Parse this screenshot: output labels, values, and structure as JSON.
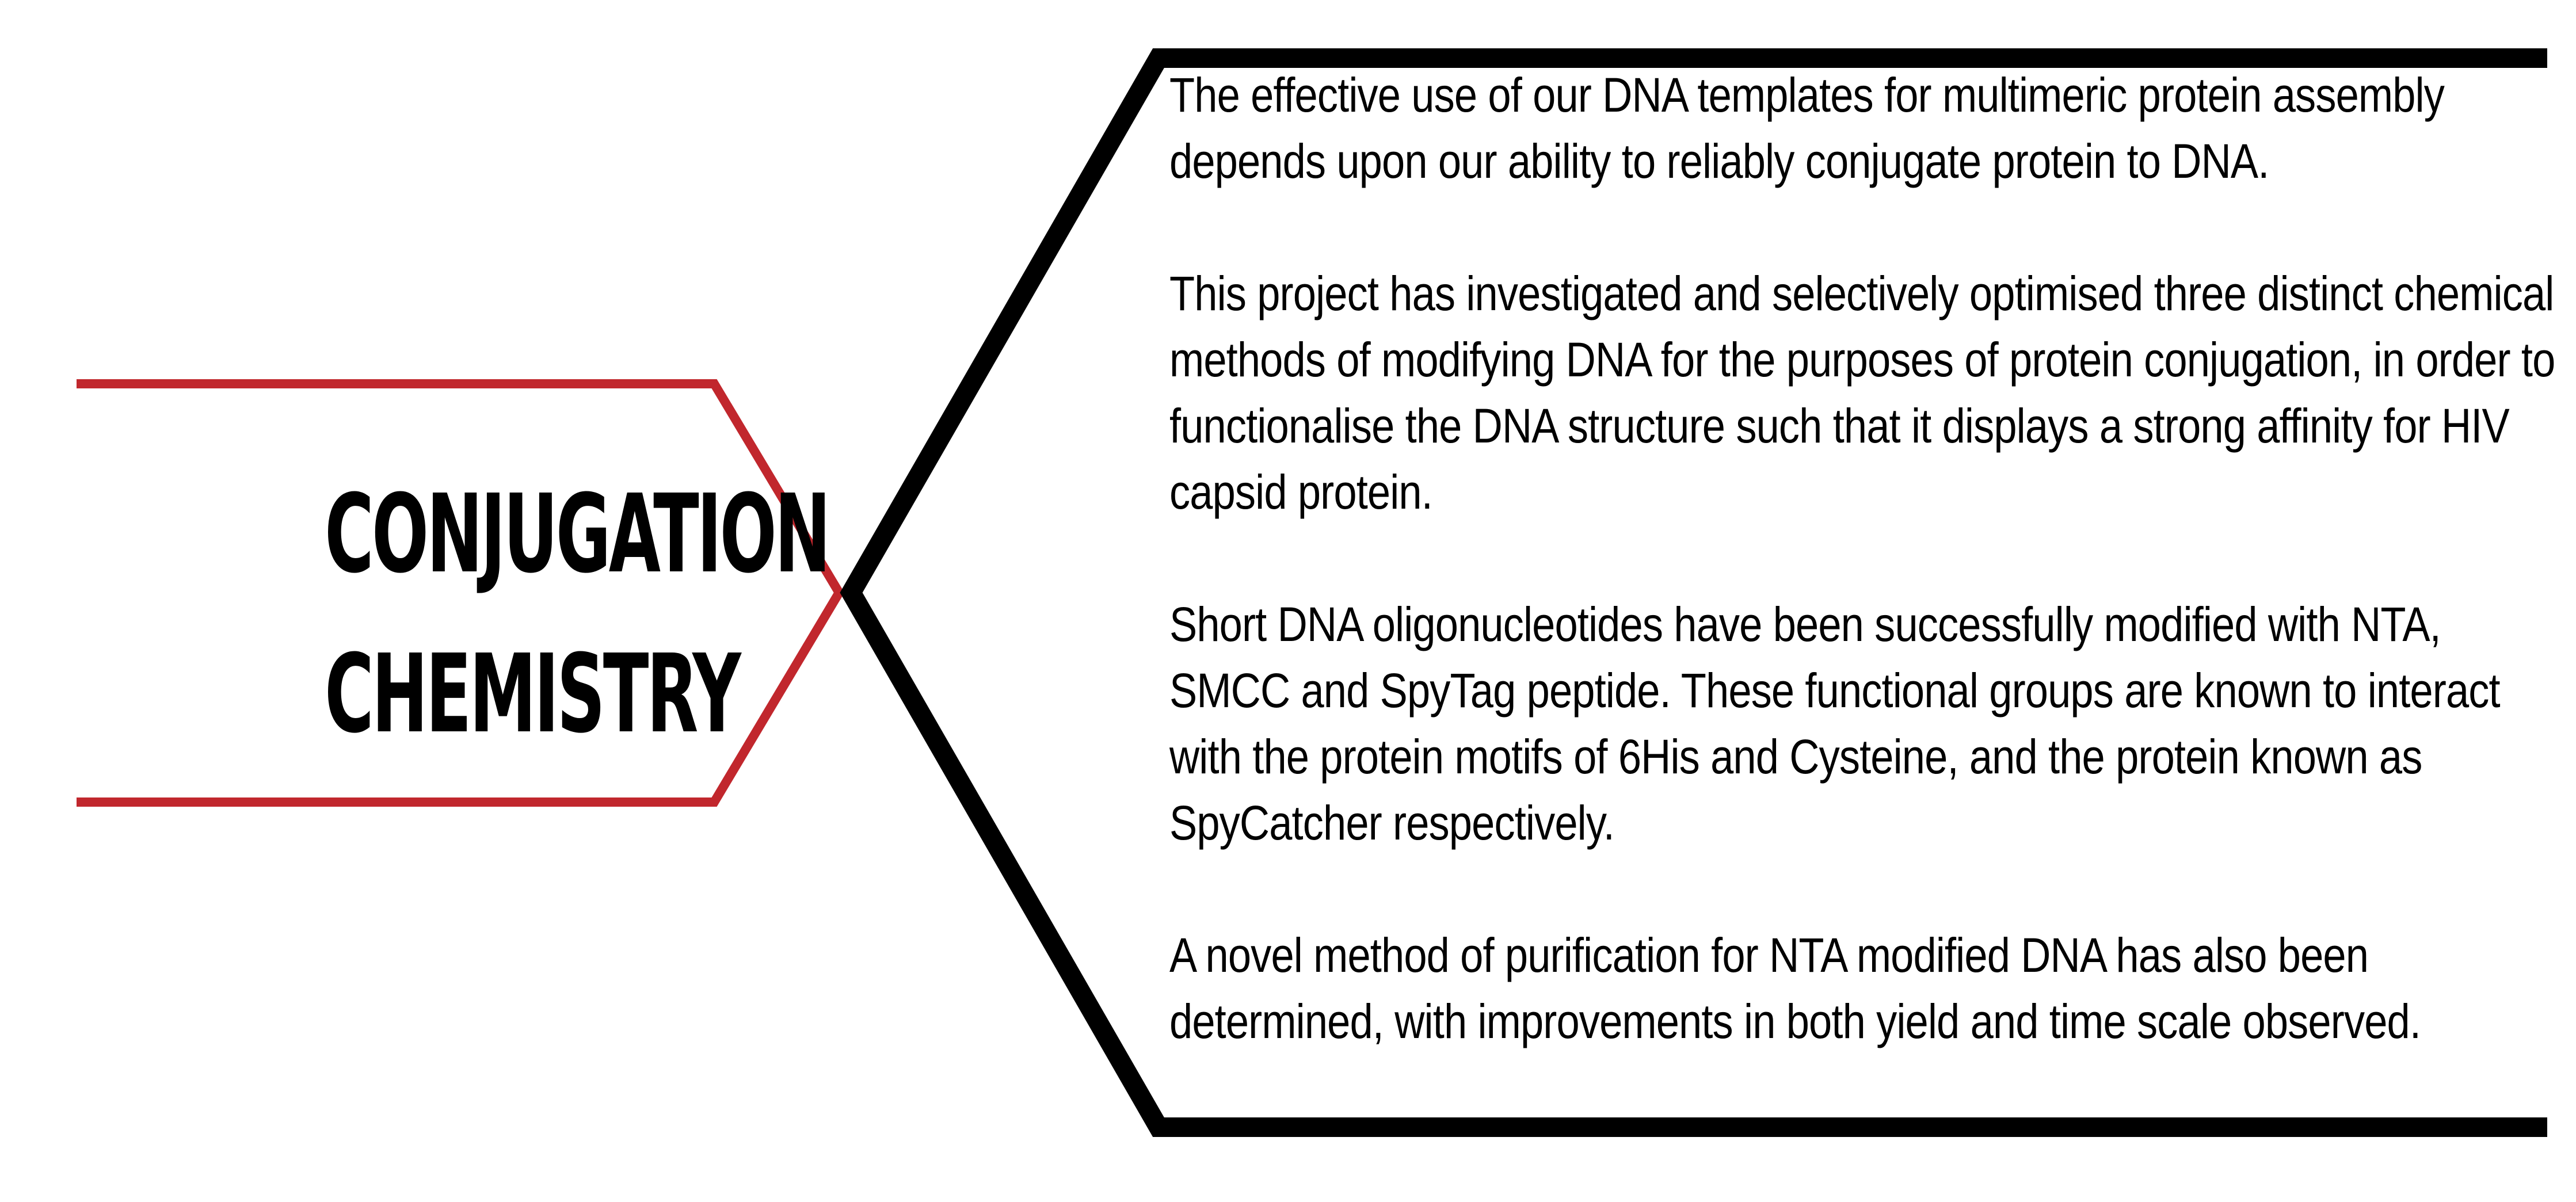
{
  "heading": {
    "line1": "CONJUGATION",
    "line2": "CHEMISTRY"
  },
  "colors": {
    "accent": "#c1272d",
    "frame": "#000000",
    "text": "#000000",
    "background": "#ffffff"
  },
  "paragraphs": [
    "The effective use of our DNA templates for multimeric protein assembly depends upon our ability to reliably conjugate protein to DNA.",
    "This project has investigated and selectively optimised three distinct chemical methods of modifying DNA for the purposes of protein conjugation, in order to functionalise the DNA structure such that it displays a strong affinity for HIV capsid protein.",
    "Short DNA oligonucleotides have been successfully modified with NTA, SMCC and SpyTag peptide. These functional groups are known to interact with the protein motifs of 6His and Cysteine, and the protein known as SpyCatcher respectively.",
    "A novel method of purification for NTA modified DNA has also been determined, with improvements in both yield and time scale observed."
  ]
}
